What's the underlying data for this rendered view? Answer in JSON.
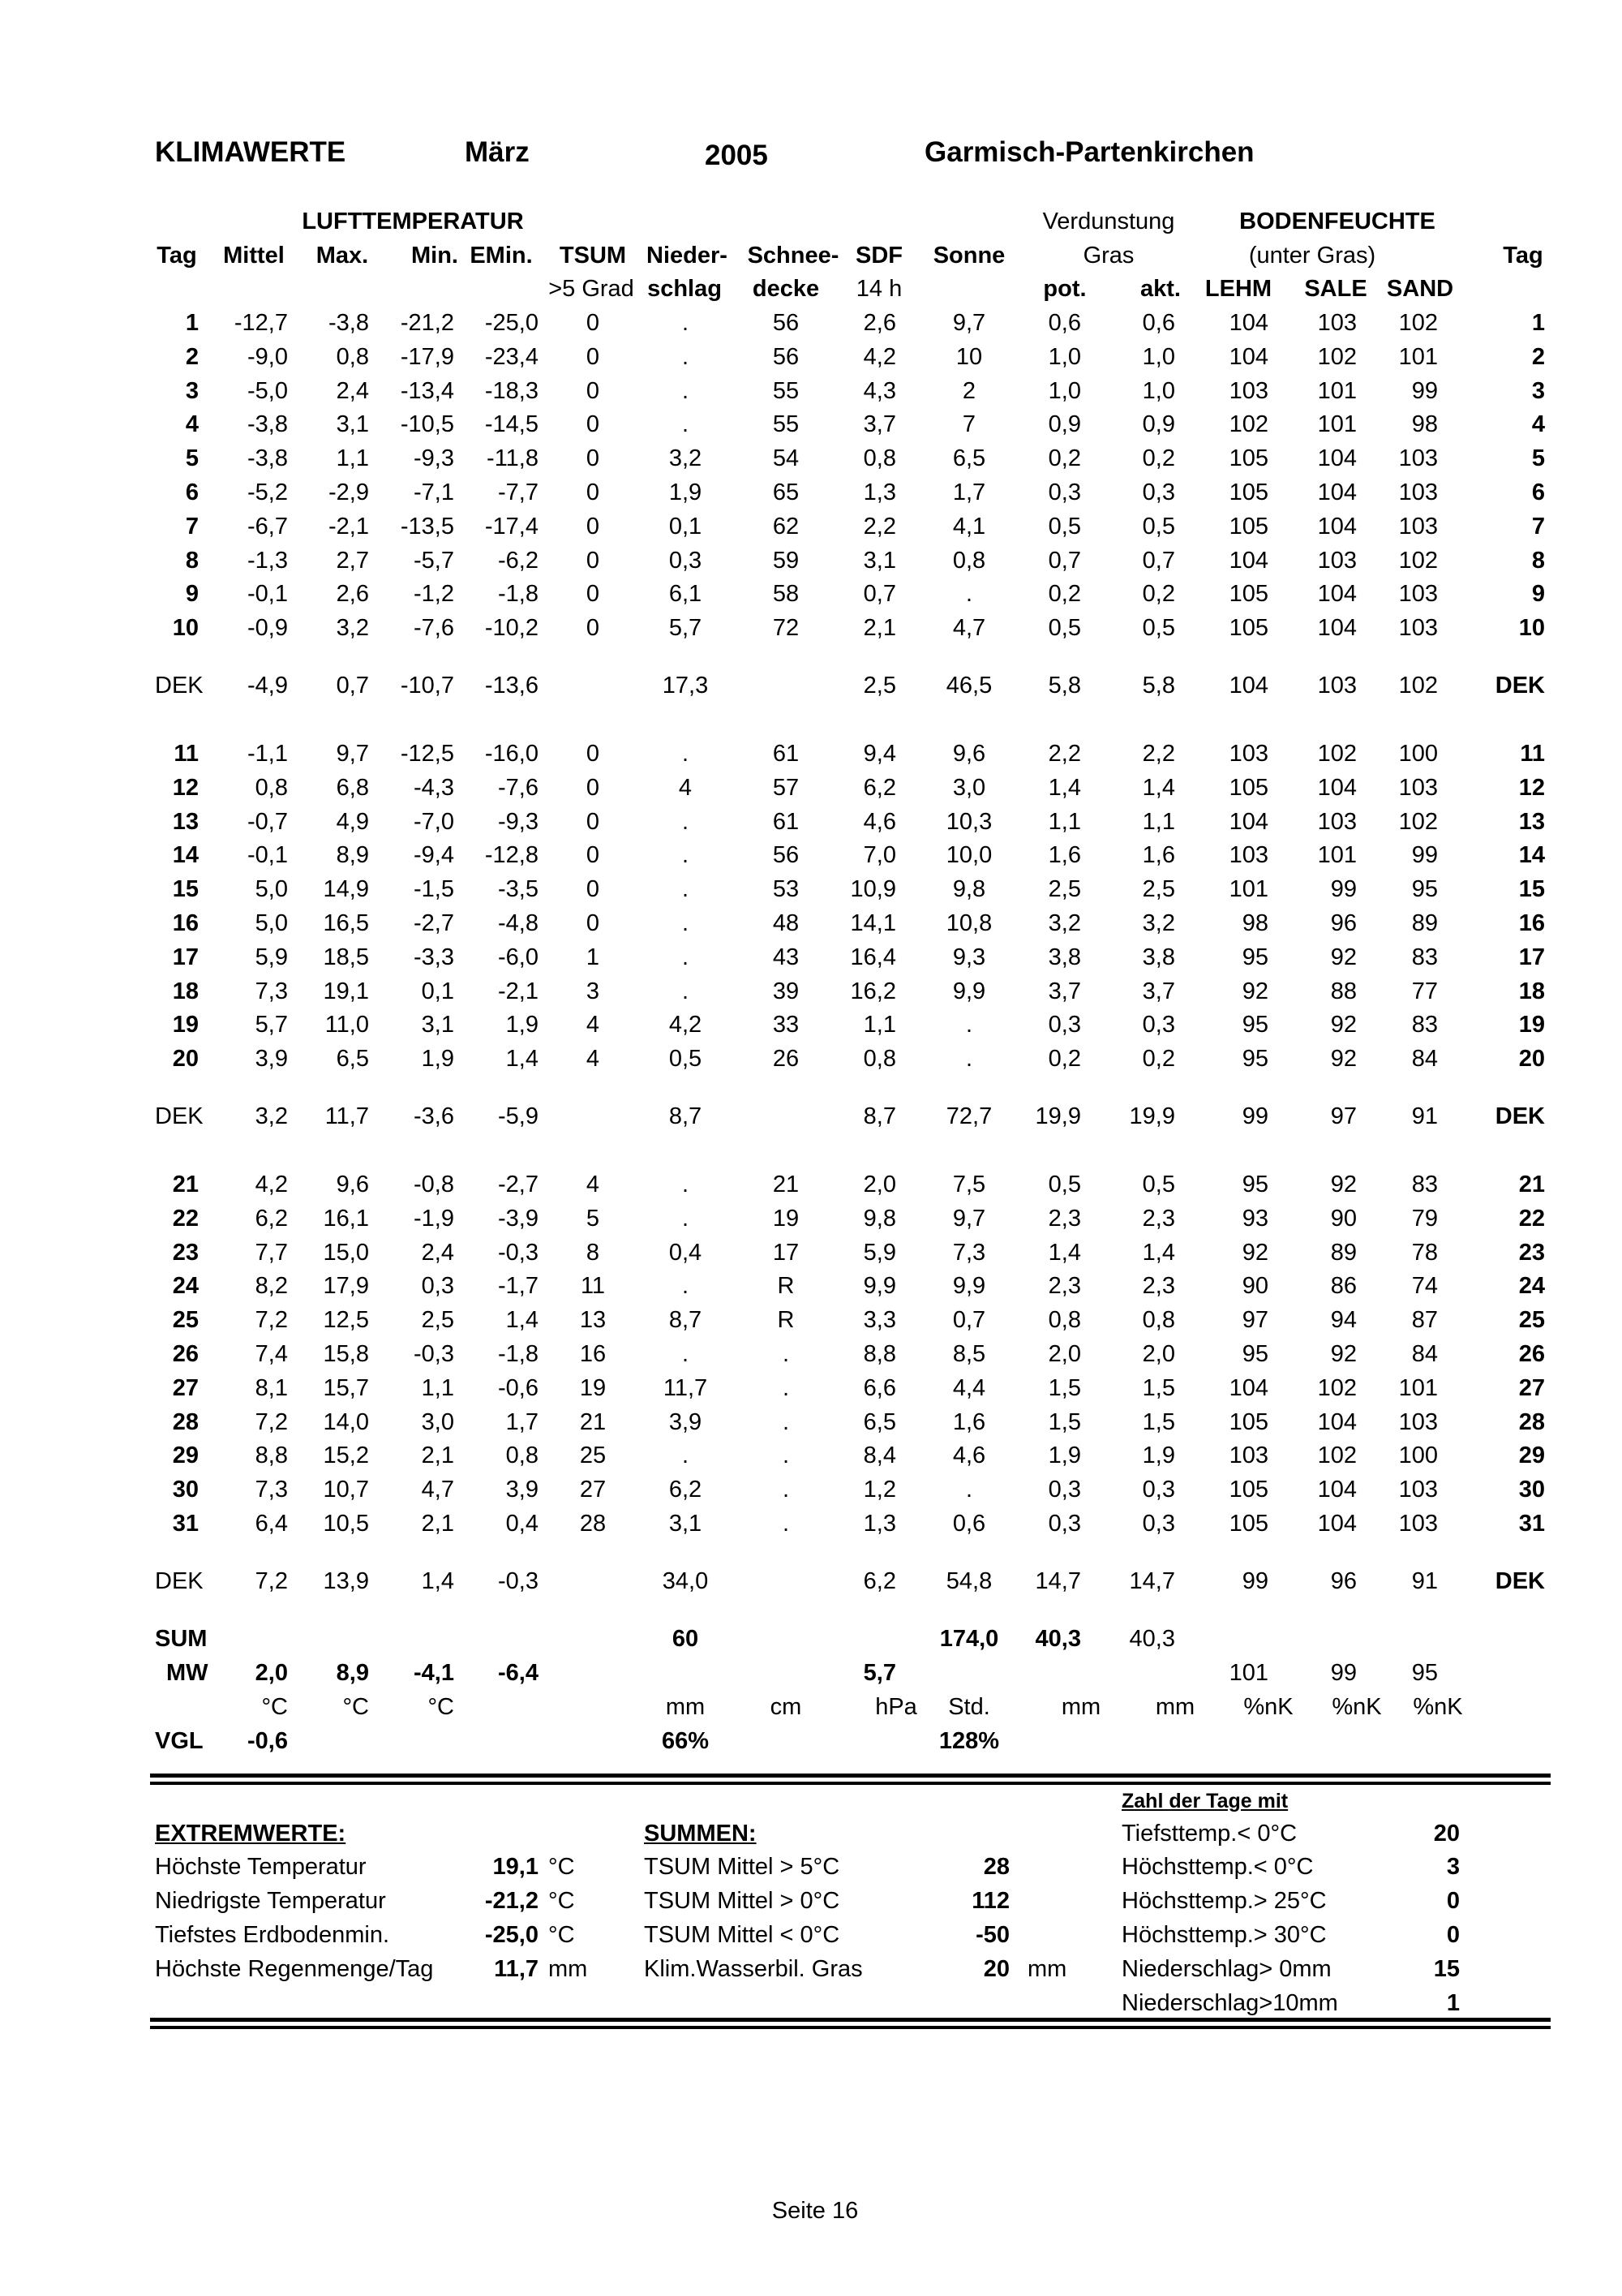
{
  "header": {
    "title": "KLIMAWERTE",
    "month": "März",
    "year": "2005",
    "station": "Garmisch-Partenkirchen"
  },
  "columns": {
    "group_luft": "LUFTTEMPERATUR",
    "group_verd": "Verdunstung",
    "group_boden": "BODENFEUCHTE",
    "tag": "Tag",
    "mittel": "Mittel",
    "max": "Max.",
    "min": "Min.",
    "emin": "EMin.",
    "tsum": "TSUM",
    "nieder": "Nieder-",
    "schnee": "Schnee-",
    "sdf": "SDF",
    "sonne": "Sonne",
    "gras": "Gras",
    "unter_gras": "(unter Gras)",
    "tag_right": "Tag",
    "tsum_sub": ">5 Grad",
    "nieder_sub": "schlag",
    "schnee_sub": "decke",
    "sdf_sub": "14 h",
    "pot": "pot.",
    "akt": "akt.",
    "lehm": "LEHM",
    "sale": "SALE",
    "sand": "SAND"
  },
  "rows": [
    [
      "1",
      "-12,7",
      "-3,8",
      "-21,2",
      "-25,0",
      "0",
      ".",
      "56",
      "2,6",
      "9,7",
      "0,6",
      "0,6",
      "104",
      "103",
      "102",
      "1"
    ],
    [
      "2",
      "-9,0",
      "0,8",
      "-17,9",
      "-23,4",
      "0",
      ".",
      "56",
      "4,2",
      "10",
      "1,0",
      "1,0",
      "104",
      "102",
      "101",
      "2"
    ],
    [
      "3",
      "-5,0",
      "2,4",
      "-13,4",
      "-18,3",
      "0",
      ".",
      "55",
      "4,3",
      "2",
      "1,0",
      "1,0",
      "103",
      "101",
      "99",
      "3"
    ],
    [
      "4",
      "-3,8",
      "3,1",
      "-10,5",
      "-14,5",
      "0",
      ".",
      "55",
      "3,7",
      "7",
      "0,9",
      "0,9",
      "102",
      "101",
      "98",
      "4"
    ],
    [
      "5",
      "-3,8",
      "1,1",
      "-9,3",
      "-11,8",
      "0",
      "3,2",
      "54",
      "0,8",
      "6,5",
      "0,2",
      "0,2",
      "105",
      "104",
      "103",
      "5"
    ],
    [
      "6",
      "-5,2",
      "-2,9",
      "-7,1",
      "-7,7",
      "0",
      "1,9",
      "65",
      "1,3",
      "1,7",
      "0,3",
      "0,3",
      "105",
      "104",
      "103",
      "6"
    ],
    [
      "7",
      "-6,7",
      "-2,1",
      "-13,5",
      "-17,4",
      "0",
      "0,1",
      "62",
      "2,2",
      "4,1",
      "0,5",
      "0,5",
      "105",
      "104",
      "103",
      "7"
    ],
    [
      "8",
      "-1,3",
      "2,7",
      "-5,7",
      "-6,2",
      "0",
      "0,3",
      "59",
      "3,1",
      "0,8",
      "0,7",
      "0,7",
      "104",
      "103",
      "102",
      "8"
    ],
    [
      "9",
      "-0,1",
      "2,6",
      "-1,2",
      "-1,8",
      "0",
      "6,1",
      "58",
      "0,7",
      ".",
      "0,2",
      "0,2",
      "105",
      "104",
      "103",
      "9"
    ],
    [
      "10",
      "-0,9",
      "3,2",
      "-7,6",
      "-10,2",
      "0",
      "5,7",
      "72",
      "2,1",
      "4,7",
      "0,5",
      "0,5",
      "105",
      "104",
      "103",
      "10"
    ],
    [
      "DEK",
      "-4,9",
      "0,7",
      "-10,7",
      "-13,6",
      "",
      "17,3",
      "",
      "2,5",
      "46,5",
      "5,8",
      "5,8",
      "104",
      "103",
      "102",
      "DEK"
    ],
    [
      "11",
      "-1,1",
      "9,7",
      "-12,5",
      "-16,0",
      "0",
      ".",
      "61",
      "9,4",
      "9,6",
      "2,2",
      "2,2",
      "103",
      "102",
      "100",
      "11"
    ],
    [
      "12",
      "0,8",
      "6,8",
      "-4,3",
      "-7,6",
      "0",
      "4",
      "57",
      "6,2",
      "3,0",
      "1,4",
      "1,4",
      "105",
      "104",
      "103",
      "12"
    ],
    [
      "13",
      "-0,7",
      "4,9",
      "-7,0",
      "-9,3",
      "0",
      ".",
      "61",
      "4,6",
      "10,3",
      "1,1",
      "1,1",
      "104",
      "103",
      "102",
      "13"
    ],
    [
      "14",
      "-0,1",
      "8,9",
      "-9,4",
      "-12,8",
      "0",
      ".",
      "56",
      "7,0",
      "10,0",
      "1,6",
      "1,6",
      "103",
      "101",
      "99",
      "14"
    ],
    [
      "15",
      "5,0",
      "14,9",
      "-1,5",
      "-3,5",
      "0",
      ".",
      "53",
      "10,9",
      "9,8",
      "2,5",
      "2,5",
      "101",
      "99",
      "95",
      "15"
    ],
    [
      "16",
      "5,0",
      "16,5",
      "-2,7",
      "-4,8",
      "0",
      ".",
      "48",
      "14,1",
      "10,8",
      "3,2",
      "3,2",
      "98",
      "96",
      "89",
      "16"
    ],
    [
      "17",
      "5,9",
      "18,5",
      "-3,3",
      "-6,0",
      "1",
      ".",
      "43",
      "16,4",
      "9,3",
      "3,8",
      "3,8",
      "95",
      "92",
      "83",
      "17"
    ],
    [
      "18",
      "7,3",
      "19,1",
      "0,1",
      "-2,1",
      "3",
      ".",
      "39",
      "16,2",
      "9,9",
      "3,7",
      "3,7",
      "92",
      "88",
      "77",
      "18"
    ],
    [
      "19",
      "5,7",
      "11,0",
      "3,1",
      "1,9",
      "4",
      "4,2",
      "33",
      "1,1",
      ".",
      "0,3",
      "0,3",
      "95",
      "92",
      "83",
      "19"
    ],
    [
      "20",
      "3,9",
      "6,5",
      "1,9",
      "1,4",
      "4",
      "0,5",
      "26",
      "0,8",
      ".",
      "0,2",
      "0,2",
      "95",
      "92",
      "84",
      "20"
    ],
    [
      "DEK",
      "3,2",
      "11,7",
      "-3,6",
      "-5,9",
      "",
      "8,7",
      "",
      "8,7",
      "72,7",
      "19,9",
      "19,9",
      "99",
      "97",
      "91",
      "DEK"
    ],
    [
      "21",
      "4,2",
      "9,6",
      "-0,8",
      "-2,7",
      "4",
      ".",
      "21",
      "2,0",
      "7,5",
      "0,5",
      "0,5",
      "95",
      "92",
      "83",
      "21"
    ],
    [
      "22",
      "6,2",
      "16,1",
      "-1,9",
      "-3,9",
      "5",
      ".",
      "19",
      "9,8",
      "9,7",
      "2,3",
      "2,3",
      "93",
      "90",
      "79",
      "22"
    ],
    [
      "23",
      "7,7",
      "15,0",
      "2,4",
      "-0,3",
      "8",
      "0,4",
      "17",
      "5,9",
      "7,3",
      "1,4",
      "1,4",
      "92",
      "89",
      "78",
      "23"
    ],
    [
      "24",
      "8,2",
      "17,9",
      "0,3",
      "-1,7",
      "11",
      ".",
      "R",
      "9,9",
      "9,9",
      "2,3",
      "2,3",
      "90",
      "86",
      "74",
      "24"
    ],
    [
      "25",
      "7,2",
      "12,5",
      "2,5",
      "1,4",
      "13",
      "8,7",
      "R",
      "3,3",
      "0,7",
      "0,8",
      "0,8",
      "97",
      "94",
      "87",
      "25"
    ],
    [
      "26",
      "7,4",
      "15,8",
      "-0,3",
      "-1,8",
      "16",
      ".",
      ".",
      "8,8",
      "8,5",
      "2,0",
      "2,0",
      "95",
      "92",
      "84",
      "26"
    ],
    [
      "27",
      "8,1",
      "15,7",
      "1,1",
      "-0,6",
      "19",
      "11,7",
      ".",
      "6,6",
      "4,4",
      "1,5",
      "1,5",
      "104",
      "102",
      "101",
      "27"
    ],
    [
      "28",
      "7,2",
      "14,0",
      "3,0",
      "1,7",
      "21",
      "3,9",
      ".",
      "6,5",
      "1,6",
      "1,5",
      "1,5",
      "105",
      "104",
      "103",
      "28"
    ],
    [
      "29",
      "8,8",
      "15,2",
      "2,1",
      "0,8",
      "25",
      ".",
      ".",
      "8,4",
      "4,6",
      "1,9",
      "1,9",
      "103",
      "102",
      "100",
      "29"
    ],
    [
      "30",
      "7,3",
      "10,7",
      "4,7",
      "3,9",
      "27",
      "6,2",
      ".",
      "1,2",
      ".",
      "0,3",
      "0,3",
      "105",
      "104",
      "103",
      "30"
    ],
    [
      "31",
      "6,4",
      "10,5",
      "2,1",
      "0,4",
      "28",
      "3,1",
      ".",
      "1,3",
      "0,6",
      "0,3",
      "0,3",
      "105",
      "104",
      "103",
      "31"
    ],
    [
      "DEK",
      "7,2",
      "13,9",
      "1,4",
      "-0,3",
      "",
      "34,0",
      "",
      "6,2",
      "54,8",
      "14,7",
      "14,7",
      "99",
      "96",
      "91",
      "DEK"
    ]
  ],
  "summary": {
    "sum": [
      "SUM",
      "",
      "",
      "",
      "",
      "",
      "60",
      "",
      "",
      "174,0",
      "40,3",
      "40,3",
      "",
      "",
      "",
      ""
    ],
    "mw": [
      "MW",
      "2,0",
      "8,9",
      "-4,1",
      "-6,4",
      "",
      "",
      "",
      "5,7",
      "",
      "",
      "",
      "101",
      "99",
      "95",
      ""
    ],
    "units": [
      "",
      "°C",
      "°C",
      "°C",
      "",
      "",
      "mm",
      "cm",
      "hPa",
      "Std.",
      "mm",
      "mm",
      "%nK",
      "%nK",
      "%nK",
      ""
    ],
    "vgl": [
      "VGL",
      "-0,6",
      "",
      "",
      "",
      "",
      "66%",
      "",
      "",
      "128%",
      "",
      "",
      "",
      "",
      "",
      ""
    ]
  },
  "extremwerte": {
    "heading": "EXTREMWERTE:",
    "items": [
      {
        "label": "Höchste Temperatur",
        "value": "19,1",
        "unit": "°C"
      },
      {
        "label": "Niedrigste Temperatur",
        "value": "-21,2",
        "unit": "°C"
      },
      {
        "label": "Tiefstes Erdbodenmin.",
        "value": "-25,0",
        "unit": "°C"
      },
      {
        "label": "Höchste Regenmenge/Tag",
        "value": "11,7",
        "unit": "mm"
      }
    ]
  },
  "summen": {
    "heading": "SUMMEN:",
    "items": [
      {
        "label": "TSUM Mittel > 5°C",
        "value": "28",
        "unit": ""
      },
      {
        "label": "TSUM Mittel > 0°C",
        "value": "112",
        "unit": ""
      },
      {
        "label": "TSUM Mittel < 0°C",
        "value": "-50",
        "unit": ""
      },
      {
        "label": "Klim.Wasserbil. Gras",
        "value": "20",
        "unit": "mm"
      }
    ]
  },
  "tage": {
    "heading": "Zahl der Tage mit",
    "items": [
      {
        "label": "Tiefsttemp.< 0°C",
        "value": "20"
      },
      {
        "label": "Höchsttemp.< 0°C",
        "value": "3"
      },
      {
        "label": "Höchsttemp.> 25°C",
        "value": "0"
      },
      {
        "label": "Höchsttemp.> 30°C",
        "value": "0"
      },
      {
        "label": "Niederschlag> 0mm",
        "value": "15"
      },
      {
        "label": "Niederschlag>10mm",
        "value": "1"
      }
    ]
  },
  "footer": {
    "page": "Seite 16"
  }
}
